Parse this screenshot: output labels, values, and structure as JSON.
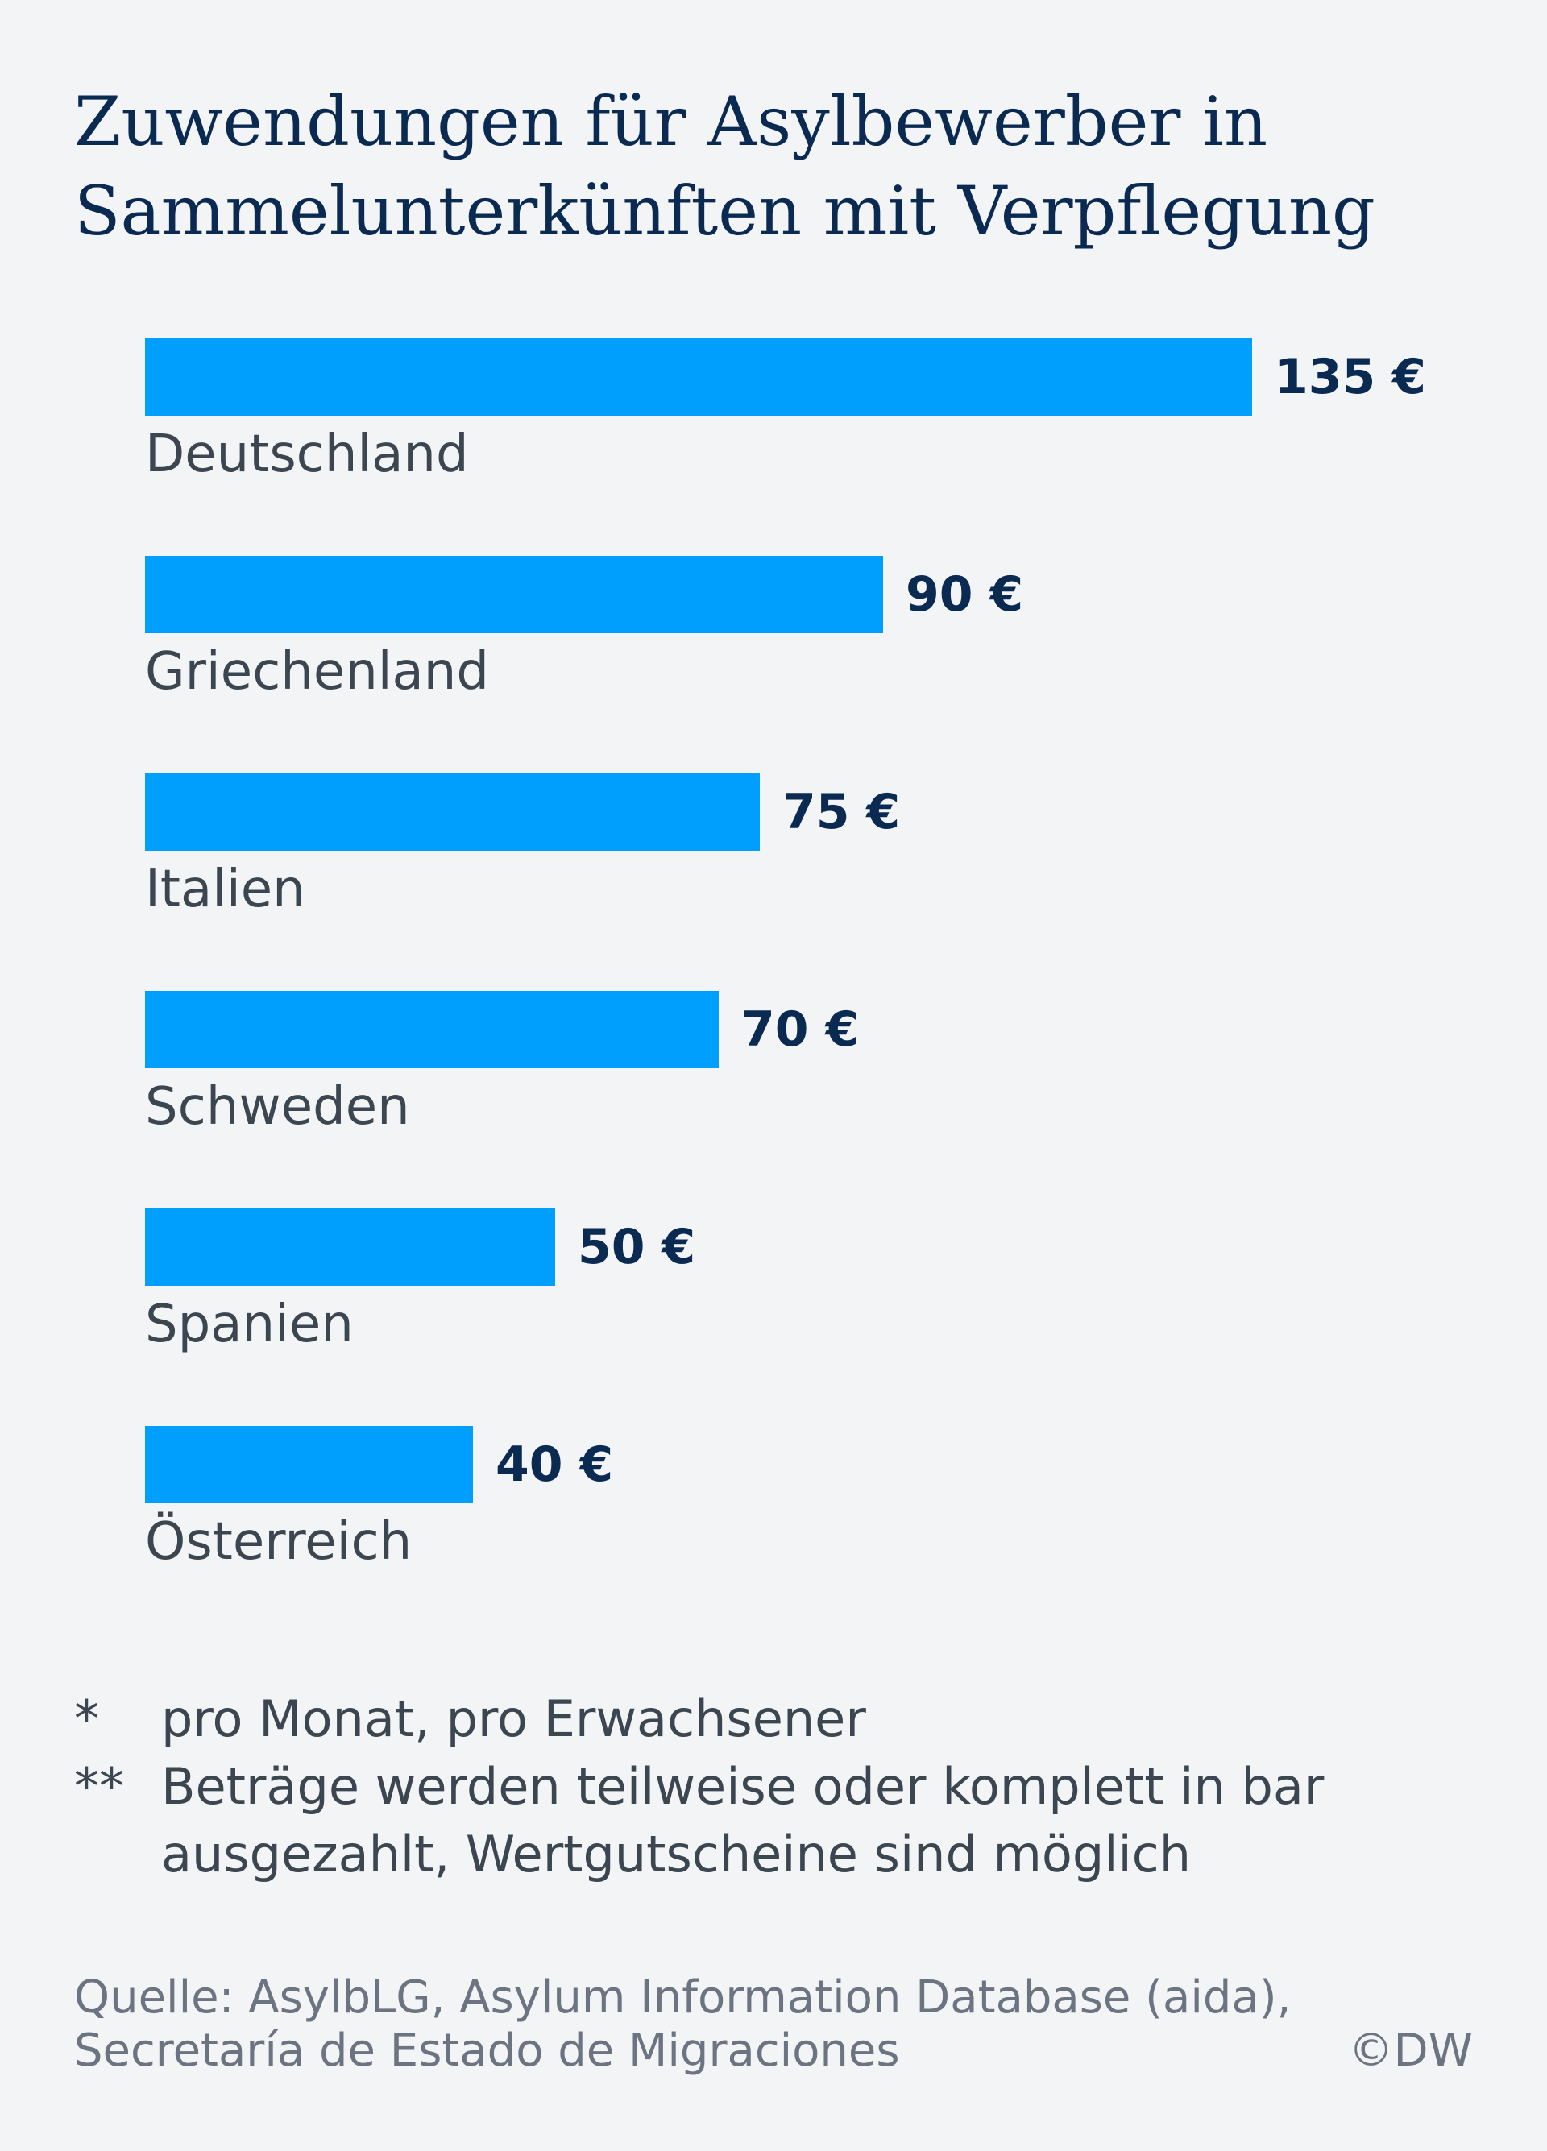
{
  "title": "Zuwendungen für Asylbewerber in Sammelunterkünften mit Verpflegung",
  "chart_data": {
    "type": "bar",
    "orientation": "horizontal",
    "categories": [
      "Deutschland",
      "Griechenland",
      "Italien",
      "Schweden",
      "Spanien",
      "Österreich"
    ],
    "values": [
      135,
      90,
      75,
      70,
      50,
      40
    ],
    "value_labels": [
      "135 €",
      "90 €",
      "75 €",
      "70 €",
      "50 €",
      "40 €"
    ],
    "bar_color": "#009ffd",
    "grid": false,
    "legend": "none"
  },
  "notes": [
    {
      "marker": "*",
      "text": "pro Monat, pro Erwachsener"
    },
    {
      "marker": "**",
      "text": "Beträge werden teilweise oder komplett in bar ausgezahlt, Wertgutscheine sind möglich"
    }
  ],
  "source": "Quelle: AsylbLG, Asylum Information Database (aida), Secretaría de Estado de Migraciones",
  "copyright": "©DW"
}
